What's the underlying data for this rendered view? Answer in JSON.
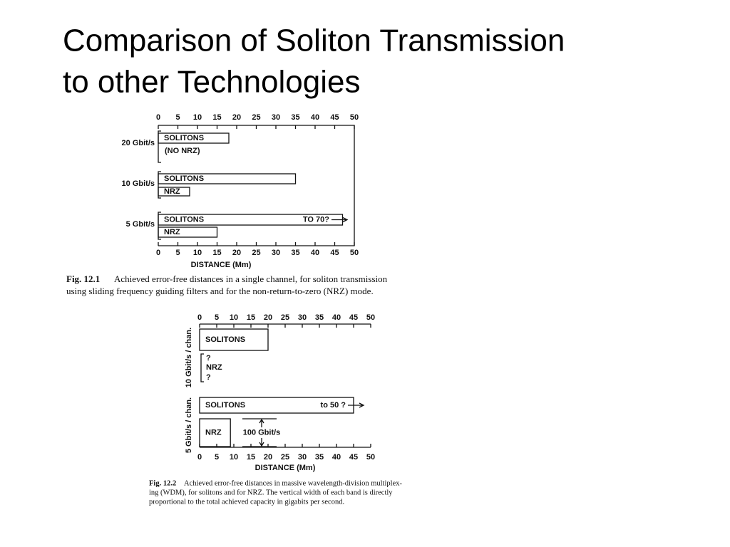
{
  "title_lines": [
    "Comparison of Soliton Transmission",
    "to other Technologies"
  ],
  "figures": [
    {
      "type": "bar",
      "xlim": [
        0,
        50
      ],
      "xticks": [
        0,
        5,
        10,
        15,
        20,
        25,
        30,
        35,
        40,
        45,
        50
      ],
      "xlabel": "DISTANCE (Mm)",
      "groups": [
        {
          "name": "20 Gbit/s",
          "bars": [
            {
              "label": "SOLITONS",
              "value": 18
            }
          ],
          "notes": [
            "(NO NRZ)"
          ]
        },
        {
          "name": "10 Gbit/s",
          "bars": [
            {
              "label": "SOLITONS",
              "value": 35
            },
            {
              "label": "NRZ",
              "value": 8
            }
          ]
        },
        {
          "name": "5 Gbit/s",
          "bars": [
            {
              "label": "SOLITONS",
              "value": 47,
              "annotation": "TO 70?"
            },
            {
              "label": "NRZ",
              "value": 15
            }
          ]
        }
      ],
      "caption": {
        "number": "Fig.  12.1",
        "lines": [
          "Achieved error-free distances in a single channel, for soliton transmission",
          "using sliding frequency guiding filters and for the non-return-to-zero (NRZ) mode."
        ]
      }
    },
    {
      "type": "bar",
      "xlim": [
        0,
        50
      ],
      "xticks": [
        0,
        5,
        10,
        15,
        20,
        25,
        30,
        35,
        40,
        45,
        50
      ],
      "xlabel": "DISTANCE (Mm)",
      "groups": [
        {
          "name": "10 Gbit/s / chan.",
          "bars": [
            {
              "label": "SOLITONS",
              "value": 20
            }
          ],
          "notes": [
            "?",
            "NRZ",
            "?"
          ]
        },
        {
          "name": "5 Gbit/s / chan.",
          "bars": [
            {
              "label": "SOLITONS",
              "value": 45,
              "annotation": "to 50 ?"
            },
            {
              "label": "NRZ",
              "value": 9,
              "annotation": "100 Gbit/s"
            }
          ]
        }
      ],
      "caption": {
        "number": "Fig.  12.2",
        "lines": [
          "Achieved error-free distances in massive wavelength-division multiplex-",
          "ing (WDM), for solitons and for NRZ. The vertical width of each band is directly",
          "proportional to the total achieved capacity in gigabits per second."
        ]
      }
    }
  ]
}
